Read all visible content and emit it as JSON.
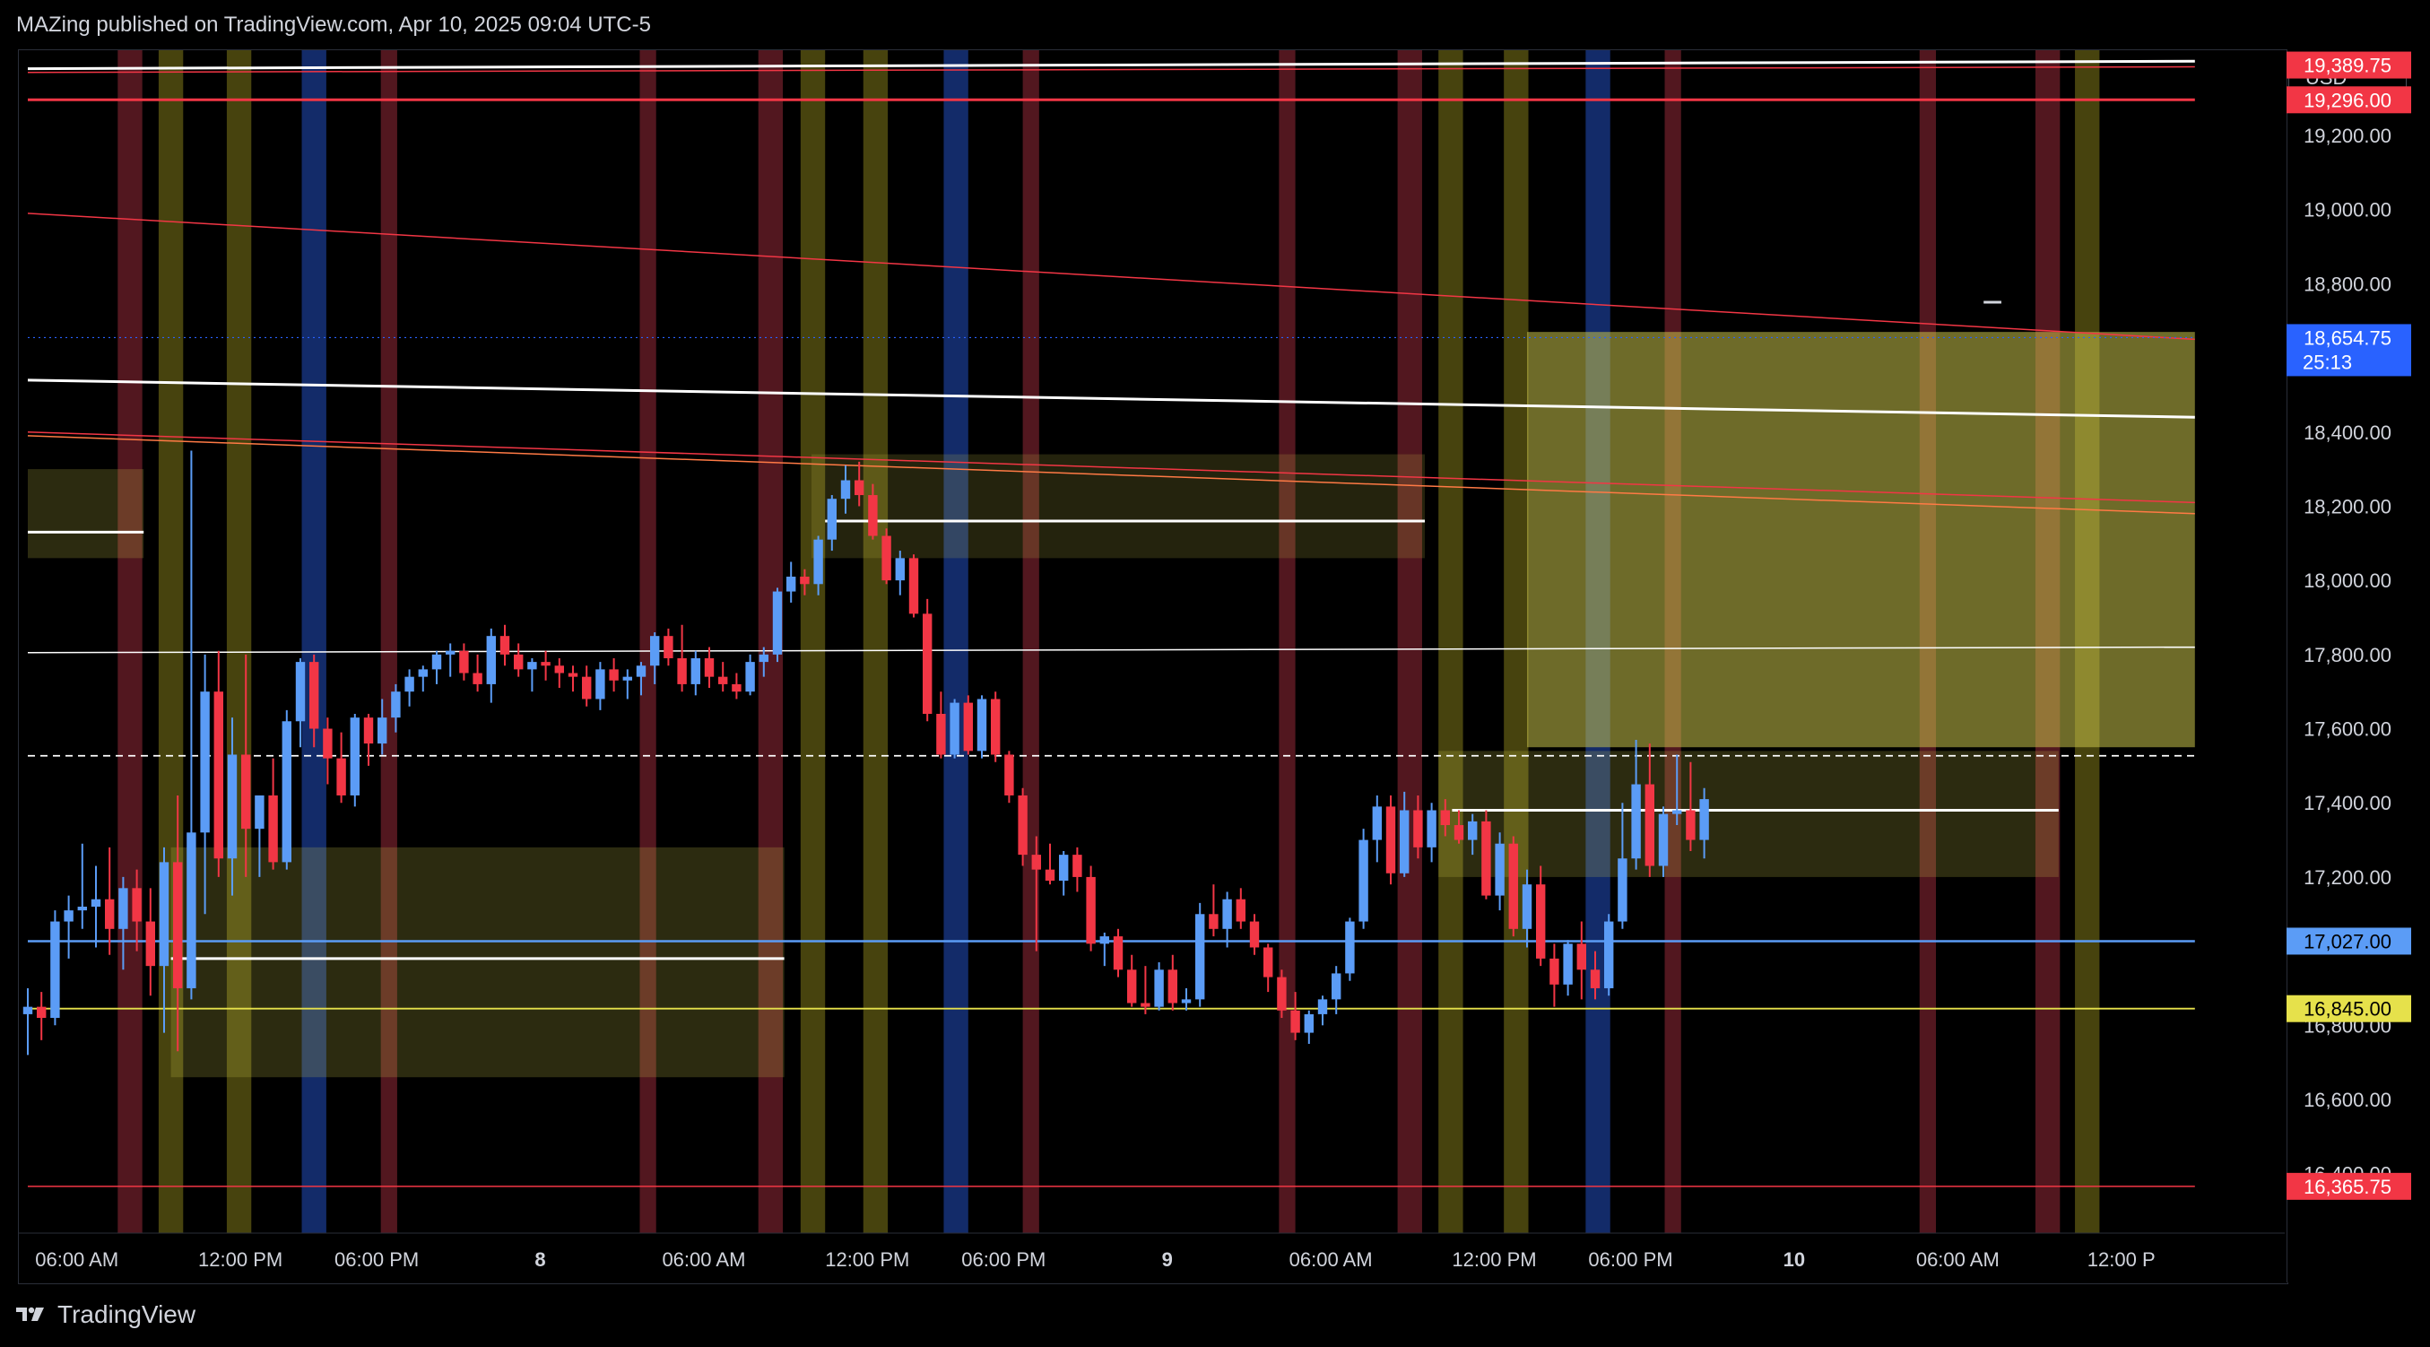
{
  "header": {
    "text": "MAZing published on TradingView.com, Apr 10, 2025 09:04 UTC-5"
  },
  "price_scale": {
    "currency": "USD"
  },
  "footer": {
    "brand": "TradingView"
  },
  "colors": {
    "background": "#000000",
    "panel": "#131722",
    "bull": "#5b9cf6",
    "bear": "#f23645",
    "zone_yellow": "#c9c34a",
    "killzone_red": "#6e1f2a",
    "killzone_yellow": "#5f5a13",
    "killzone_blue": "#1a3a8c",
    "level_blue": "#5b9cf6",
    "level_yellow": "#e6e14b",
    "level_red": "#f23645"
  },
  "chart_data": {
    "type": "candlestick",
    "symbol_quote": "USD",
    "ylim": [
      16340,
      19600
    ],
    "y_ticks": [
      "19,200.00",
      "19,000.00",
      "18,800.00",
      "18,400.00",
      "18,200.00",
      "18,000.00",
      "17,800.00",
      "17,600.00",
      "17,400.00",
      "17,200.00",
      "16,800.00",
      "16,600.00",
      "16,400.00"
    ],
    "x_ticks": [
      "06:00 AM",
      "12:00 PM",
      "06:00 PM",
      "8",
      "06:00 AM",
      "12:00 PM",
      "06:00 PM",
      "9",
      "06:00 AM",
      "12:00 PM",
      "06:00 PM",
      "10",
      "06:00 AM",
      "12:00 P"
    ],
    "x_tick_bars": [
      3.6,
      15.6,
      25.6,
      37.6,
      49.6,
      61.6,
      71.6,
      83.6,
      95.6,
      107.6,
      117.6,
      129.6,
      141.6,
      153.6
    ],
    "x_bold_ticks": [
      "8",
      "9",
      "10"
    ],
    "price_badges": [
      {
        "label": "19,389.75",
        "value": 19389.75,
        "color": "#f23645",
        "text_color": "#ffffff"
      },
      {
        "label": "19,296.00",
        "value": 19296,
        "color": "#f23645",
        "text_color": "#ffffff"
      },
      {
        "label": "18,654.75",
        "value": 18654.75,
        "color": "#2962ff",
        "text_color": "#ffffff",
        "sub": "25:13"
      },
      {
        "label": "17,027.00",
        "value": 17027,
        "color": "#5b9cf6",
        "text_color": "#000000"
      },
      {
        "label": "16,845.00",
        "value": 16845,
        "color": "#e6e14b",
        "text_color": "#000000"
      },
      {
        "label": "16,365.75",
        "value": 16365.75,
        "color": "#f23645",
        "text_color": "#ffffff"
      }
    ],
    "killzones": [
      {
        "bar": 7.5,
        "w": 1.8,
        "kind": "red"
      },
      {
        "bar": 10.5,
        "w": 1.8,
        "kind": "yellow"
      },
      {
        "bar": 15.5,
        "w": 1.8,
        "kind": "yellow"
      },
      {
        "bar": 21.0,
        "w": 1.8,
        "kind": "blue"
      },
      {
        "bar": 26.5,
        "w": 1.2,
        "kind": "red"
      },
      {
        "bar": 45.5,
        "w": 1.2,
        "kind": "red"
      },
      {
        "bar": 54.5,
        "w": 1.8,
        "kind": "red"
      },
      {
        "bar": 57.6,
        "w": 1.8,
        "kind": "yellow"
      },
      {
        "bar": 62.2,
        "w": 1.8,
        "kind": "yellow"
      },
      {
        "bar": 68.1,
        "w": 1.8,
        "kind": "blue"
      },
      {
        "bar": 73.6,
        "w": 1.2,
        "kind": "red"
      },
      {
        "bar": 92.4,
        "w": 1.2,
        "kind": "red"
      },
      {
        "bar": 101.4,
        "w": 1.8,
        "kind": "red"
      },
      {
        "bar": 104.4,
        "w": 1.8,
        "kind": "yellow"
      },
      {
        "bar": 109.2,
        "w": 1.8,
        "kind": "yellow"
      },
      {
        "bar": 115.2,
        "w": 1.8,
        "kind": "blue"
      },
      {
        "bar": 120.7,
        "w": 1.2,
        "kind": "red"
      },
      {
        "bar": 139.4,
        "w": 1.2,
        "kind": "red"
      },
      {
        "bar": 148.2,
        "w": 1.8,
        "kind": "red"
      },
      {
        "bar": 151.1,
        "w": 1.8,
        "kind": "yellow"
      }
    ],
    "zones": [
      {
        "x0": 0,
        "x1": 8.5,
        "y0": 18300,
        "y1": 18060,
        "opacity": 0.22
      },
      {
        "x0": 10.5,
        "x1": 55.5,
        "y0": 17280,
        "y1": 16660,
        "opacity": 0.22
      },
      {
        "x0": 57.5,
        "x1": 102.5,
        "y0": 18340,
        "y1": 18060,
        "opacity": 0.18
      },
      {
        "x0": 103.5,
        "x1": 149,
        "y0": 17540,
        "y1": 17200,
        "opacity": 0.22
      },
      {
        "x0": 110,
        "x1": 159,
        "y0": 18670,
        "y1": 17550,
        "opacity": 0.55
      }
    ],
    "segments": [
      {
        "x0": 0,
        "y0": 19380,
        "x1": 159,
        "y1": 19400,
        "color": "#ffffff",
        "w": 3
      },
      {
        "x0": 0,
        "y0": 19370,
        "x1": 159,
        "y1": 19385,
        "color": "#f23645",
        "w": 1.5
      },
      {
        "x0": 0,
        "y0": 19296,
        "x1": 159,
        "y1": 19296,
        "color": "#f23645",
        "w": 3
      },
      {
        "x0": 0,
        "y0": 19550,
        "x1": 159,
        "y1": 19490,
        "color": "#b2b5be",
        "w": 2.5,
        "dash": "14 12"
      },
      {
        "x0": 0,
        "y0": 18990,
        "x1": 159,
        "y1": 18650,
        "color": "#f23645",
        "w": 1.5
      },
      {
        "x0": 0,
        "y0": 18540,
        "x1": 159,
        "y1": 18440,
        "color": "#ffffff",
        "w": 3
      },
      {
        "x0": 0,
        "y0": 18400,
        "x1": 159,
        "y1": 18210,
        "color": "#f23645",
        "w": 1.5
      },
      {
        "x0": 0,
        "y0": 18390,
        "x1": 159,
        "y1": 18180,
        "color": "#ff7a45",
        "w": 1.5
      },
      {
        "x0": 0,
        "y0": 18130,
        "x1": 8.5,
        "y1": 18130,
        "color": "#ffffff",
        "w": 3
      },
      {
        "x0": 58.5,
        "y0": 18160,
        "x1": 102.5,
        "y1": 18160,
        "color": "#ffffff",
        "w": 3
      },
      {
        "x0": 10.5,
        "y0": 16980,
        "x1": 55.5,
        "y1": 16980,
        "color": "#ffffff",
        "w": 3
      },
      {
        "x0": 104.5,
        "y0": 17380,
        "x1": 149,
        "y1": 17380,
        "color": "#ffffff",
        "w": 3
      },
      {
        "x0": 0,
        "y0": 17805,
        "x1": 159,
        "y1": 17820,
        "color": "#ffffff",
        "w": 1.5
      },
      {
        "x0": 0,
        "y0": 17527,
        "x1": 159,
        "y1": 17527,
        "color": "#ffffff",
        "w": 1.8,
        "dash": "8 6"
      },
      {
        "x0": 0,
        "y0": 17027,
        "x1": 159,
        "y1": 17027,
        "color": "#5b9cf6",
        "w": 2.5
      },
      {
        "x0": 0,
        "y0": 16845,
        "x1": 159,
        "y1": 16845,
        "color": "#e6e14b",
        "w": 1.8
      },
      {
        "x0": 0,
        "y0": 16365.75,
        "x1": 159,
        "y1": 16365.75,
        "color": "#f23645",
        "w": 1.5
      },
      {
        "x0": 0,
        "y0": 18654.75,
        "x1": 159,
        "y1": 18654.75,
        "color": "#2962ff",
        "w": 1.2,
        "dash": "2 4"
      }
    ],
    "candles": [
      [
        16830,
        16900,
        16720,
        16850
      ],
      [
        16850,
        16890,
        16760,
        16820
      ],
      [
        16820,
        17110,
        16800,
        17080
      ],
      [
        17080,
        17150,
        16980,
        17110
      ],
      [
        17110,
        17290,
        17060,
        17120
      ],
      [
        17120,
        17230,
        17010,
        17140
      ],
      [
        17140,
        17280,
        16990,
        17060
      ],
      [
        17060,
        17200,
        16950,
        17170
      ],
      [
        17170,
        17220,
        17000,
        17080
      ],
      [
        17080,
        17170,
        16880,
        16960
      ],
      [
        16960,
        17280,
        16780,
        17240
      ],
      [
        17240,
        17420,
        16730,
        16900
      ],
      [
        16900,
        18350,
        16870,
        17320
      ],
      [
        17320,
        17800,
        17100,
        17700
      ],
      [
        17700,
        17810,
        17200,
        17250
      ],
      [
        17250,
        17630,
        17150,
        17530
      ],
      [
        17530,
        17800,
        17200,
        17330
      ],
      [
        17330,
        17410,
        17200,
        17420
      ],
      [
        17420,
        17520,
        17220,
        17240
      ],
      [
        17240,
        17650,
        17220,
        17620
      ],
      [
        17620,
        17790,
        17550,
        17780
      ],
      [
        17780,
        17800,
        17550,
        17600
      ],
      [
        17600,
        17630,
        17450,
        17520
      ],
      [
        17520,
        17590,
        17400,
        17420
      ],
      [
        17420,
        17640,
        17390,
        17630
      ],
      [
        17630,
        17640,
        17500,
        17560
      ],
      [
        17560,
        17680,
        17530,
        17630
      ],
      [
        17630,
        17720,
        17590,
        17700
      ],
      [
        17700,
        17760,
        17660,
        17740
      ],
      [
        17740,
        17770,
        17700,
        17760
      ],
      [
        17760,
        17810,
        17720,
        17800
      ],
      [
        17800,
        17830,
        17740,
        17810
      ],
      [
        17810,
        17830,
        17730,
        17750
      ],
      [
        17750,
        17800,
        17700,
        17720
      ],
      [
        17720,
        17870,
        17670,
        17850
      ],
      [
        17850,
        17880,
        17770,
        17800
      ],
      [
        17800,
        17830,
        17740,
        17760
      ],
      [
        17760,
        17790,
        17700,
        17780
      ],
      [
        17780,
        17810,
        17730,
        17770
      ],
      [
        17770,
        17790,
        17710,
        17750
      ],
      [
        17750,
        17770,
        17700,
        17740
      ],
      [
        17740,
        17770,
        17660,
        17680
      ],
      [
        17680,
        17780,
        17650,
        17760
      ],
      [
        17760,
        17790,
        17700,
        17730
      ],
      [
        17730,
        17760,
        17680,
        17740
      ],
      [
        17740,
        17780,
        17690,
        17770
      ],
      [
        17770,
        17860,
        17720,
        17850
      ],
      [
        17850,
        17870,
        17770,
        17790
      ],
      [
        17790,
        17880,
        17700,
        17720
      ],
      [
        17720,
        17810,
        17690,
        17790
      ],
      [
        17790,
        17820,
        17710,
        17740
      ],
      [
        17740,
        17780,
        17700,
        17720
      ],
      [
        17720,
        17750,
        17680,
        17700
      ],
      [
        17700,
        17800,
        17690,
        17780
      ],
      [
        17780,
        17820,
        17740,
        17800
      ],
      [
        17800,
        17980,
        17780,
        17970
      ],
      [
        17970,
        18050,
        17940,
        18010
      ],
      [
        18010,
        18030,
        17960,
        17990
      ],
      [
        17990,
        18120,
        17960,
        18110
      ],
      [
        18110,
        18230,
        18080,
        18220
      ],
      [
        18220,
        18310,
        18180,
        18270
      ],
      [
        18270,
        18320,
        18200,
        18230
      ],
      [
        18230,
        18260,
        18110,
        18120
      ],
      [
        18120,
        18140,
        17990,
        18000
      ],
      [
        18000,
        18080,
        17960,
        18060
      ],
      [
        18060,
        18070,
        17900,
        17910
      ],
      [
        17910,
        17950,
        17620,
        17640
      ],
      [
        17640,
        17700,
        17520,
        17530
      ],
      [
        17530,
        17680,
        17520,
        17670
      ],
      [
        17670,
        17690,
        17530,
        17540
      ],
      [
        17540,
        17690,
        17520,
        17680
      ],
      [
        17680,
        17700,
        17510,
        17530
      ],
      [
        17530,
        17540,
        17400,
        17420
      ],
      [
        17420,
        17440,
        17230,
        17260
      ],
      [
        17260,
        17310,
        17000,
        17220
      ],
      [
        17220,
        17290,
        17180,
        17190
      ],
      [
        17190,
        17270,
        17150,
        17260
      ],
      [
        17260,
        17280,
        17160,
        17200
      ],
      [
        17200,
        17230,
        17000,
        17020
      ],
      [
        17020,
        17050,
        16960,
        17040
      ],
      [
        17040,
        17060,
        16930,
        16950
      ],
      [
        16950,
        16990,
        16850,
        16860
      ],
      [
        16860,
        16960,
        16830,
        16850
      ],
      [
        16850,
        16970,
        16840,
        16950
      ],
      [
        16950,
        16990,
        16840,
        16860
      ],
      [
        16860,
        16900,
        16840,
        16870
      ],
      [
        16870,
        17130,
        16850,
        17100
      ],
      [
        17100,
        17180,
        17040,
        17060
      ],
      [
        17060,
        17160,
        17010,
        17140
      ],
      [
        17140,
        17170,
        17060,
        17080
      ],
      [
        17080,
        17100,
        16990,
        17010
      ],
      [
        17010,
        17020,
        16890,
        16930
      ],
      [
        16930,
        16950,
        16820,
        16840
      ],
      [
        16840,
        16890,
        16760,
        16780
      ],
      [
        16780,
        16840,
        16750,
        16830
      ],
      [
        16830,
        16880,
        16800,
        16870
      ],
      [
        16870,
        16960,
        16830,
        16940
      ],
      [
        16940,
        17090,
        16920,
        17080
      ],
      [
        17080,
        17330,
        17060,
        17300
      ],
      [
        17300,
        17420,
        17240,
        17390
      ],
      [
        17390,
        17420,
        17180,
        17210
      ],
      [
        17210,
        17430,
        17200,
        17380
      ],
      [
        17380,
        17420,
        17250,
        17280
      ],
      [
        17280,
        17400,
        17240,
        17380
      ],
      [
        17380,
        17410,
        17310,
        17340
      ],
      [
        17340,
        17380,
        17290,
        17300
      ],
      [
        17300,
        17370,
        17260,
        17350
      ],
      [
        17350,
        17380,
        17140,
        17150
      ],
      [
        17150,
        17320,
        17110,
        17290
      ],
      [
        17290,
        17310,
        17040,
        17060
      ],
      [
        17060,
        17220,
        17010,
        17180
      ],
      [
        17180,
        17230,
        16960,
        16980
      ],
      [
        16980,
        17020,
        16850,
        16910
      ],
      [
        16910,
        17030,
        16880,
        17020
      ],
      [
        17020,
        17080,
        16870,
        16950
      ],
      [
        16950,
        17000,
        16870,
        16900
      ],
      [
        16900,
        17100,
        16880,
        17080
      ],
      [
        17080,
        17400,
        17060,
        17250
      ],
      [
        17250,
        17570,
        17220,
        17450
      ],
      [
        17450,
        17560,
        17200,
        17230
      ],
      [
        17230,
        17390,
        17200,
        17370
      ],
      [
        17370,
        17530,
        17340,
        17380
      ],
      [
        17380,
        17510,
        17270,
        17300
      ],
      [
        17300,
        17440,
        17250,
        17410
      ]
    ]
  }
}
